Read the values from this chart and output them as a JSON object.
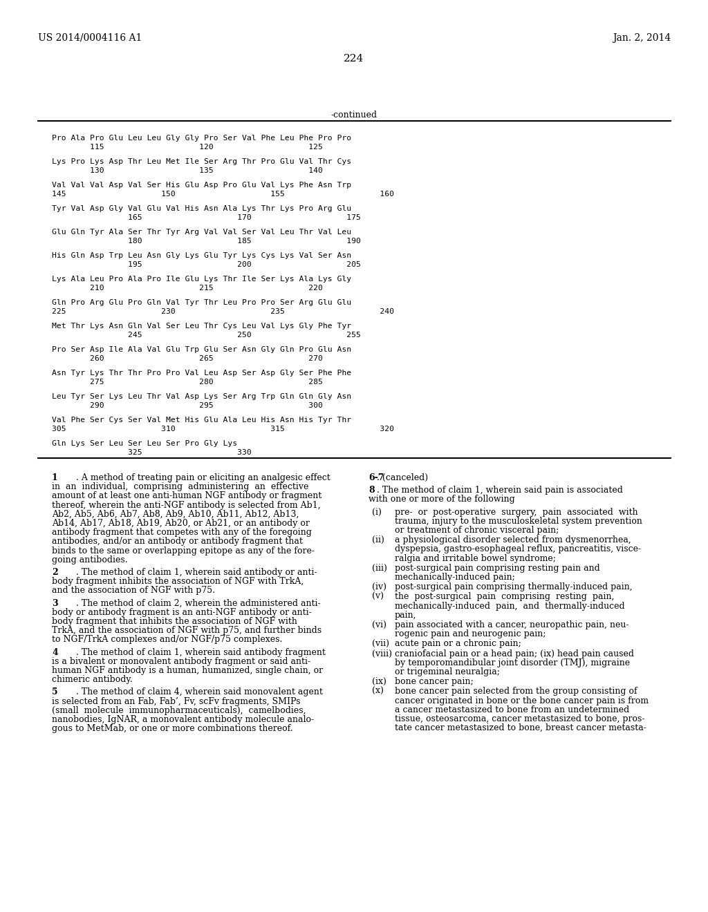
{
  "header_left": "US 2014/0004116 A1",
  "header_right": "Jan. 2, 2014",
  "page_number": "224",
  "continued_label": "-continued",
  "seq_data": [
    [
      "Pro Ala Pro Glu Leu Leu Gly Gly Pro Ser Val Phe Leu Phe Pro Pro",
      "        115                    120                    125"
    ],
    [
      "Lys Pro Lys Asp Thr Leu Met Ile Ser Arg Thr Pro Glu Val Thr Cys",
      "        130                    135                    140"
    ],
    [
      "Val Val Val Asp Val Ser His Glu Asp Pro Glu Val Lys Phe Asn Trp",
      "145                    150                    155                    160"
    ],
    [
      "Tyr Val Asp Gly Val Glu Val His Asn Ala Lys Thr Lys Pro Arg Glu",
      "                165                    170                    175"
    ],
    [
      "Glu Gln Tyr Ala Ser Thr Tyr Arg Val Val Ser Val Leu Thr Val Leu",
      "                180                    185                    190"
    ],
    [
      "His Gln Asp Trp Leu Asn Gly Lys Glu Tyr Lys Cys Lys Val Ser Asn",
      "                195                    200                    205"
    ],
    [
      "Lys Ala Leu Pro Ala Pro Ile Glu Lys Thr Ile Ser Lys Ala Lys Gly",
      "        210                    215                    220"
    ],
    [
      "Gln Pro Arg Glu Pro Gln Val Tyr Thr Leu Pro Pro Ser Arg Glu Glu",
      "225                    230                    235                    240"
    ],
    [
      "Met Thr Lys Asn Gln Val Ser Leu Thr Cys Leu Val Lys Gly Phe Tyr",
      "                245                    250                    255"
    ],
    [
      "Pro Ser Asp Ile Ala Val Glu Trp Glu Ser Asn Gly Gln Pro Glu Asn",
      "        260                    265                    270"
    ],
    [
      "Asn Tyr Lys Thr Thr Pro Pro Val Leu Asp Ser Asp Gly Ser Phe Phe",
      "        275                    280                    285"
    ],
    [
      "Leu Tyr Ser Lys Leu Thr Val Asp Lys Ser Arg Trp Gln Gln Gly Asn",
      "        290                    295                    300"
    ],
    [
      "Val Phe Ser Cys Ser Val Met His Glu Ala Leu His Asn His Tyr Thr",
      "305                    310                    315                    320"
    ],
    [
      "Gln Lys Ser Leu Ser Leu Ser Pro Gly Lys",
      "                325                    330"
    ]
  ],
  "left_claims": [
    {
      "num": "1",
      "lines": [
        ". A method of treating pain or eliciting an analgesic effect",
        "in  an  individual,  comprising  administering  an  effective",
        "amount of at least one anti-human NGF antibody or fragment",
        "thereof, wherein the anti-NGF antibody is selected from Ab1,",
        "Ab2, Ab5, Ab6, Ab7, Ab8, Ab9, Ab10, Ab11, Ab12, Ab13,",
        "Ab14, Ab17, Ab18, Ab19, Ab20, or Ab21, or an antibody or",
        "antibody fragment that competes with any of the foregoing",
        "antibodies, and/or an antibody or antibody fragment that",
        "binds to the same or overlapping epitope as any of the fore-",
        "going antibodies."
      ]
    },
    {
      "num": "2",
      "lines": [
        ". The method of claim 1, wherein said antibody or anti-",
        "body fragment inhibits the association of NGF with TrkA,",
        "and the association of NGF with p75."
      ]
    },
    {
      "num": "3",
      "lines": [
        ". The method of claim 2, wherein the administered anti-",
        "body or antibody fragment is an anti-NGF antibody or anti-",
        "body fragment that inhibits the association of NGF with",
        "TrkA, and the association of NGF with p75, and further binds",
        "to NGF/TrkA complexes and/or NGF/p75 complexes."
      ]
    },
    {
      "num": "4",
      "lines": [
        ". The method of claim 1, wherein said antibody fragment",
        "is a bivalent or monovalent antibody fragment or said anti-",
        "human NGF antibody is a human, humanized, single chain, or",
        "chimeric antibody."
      ]
    },
    {
      "num": "5",
      "lines": [
        ". The method of claim 4, wherein said monovalent agent",
        "is selected from an Fab, Fab’, Fv, scFv fragments, SMIPs",
        "(small  molecule  immunopharmaceuticals),  camelbodies,",
        "nanobodies, IgNAR, a monovalent antibody molecule analo-",
        "gous to MetMab, or one or more combinations thereof."
      ]
    }
  ],
  "right_claims_top": [
    {
      "num": "6-7",
      "lines": [
        ". (canceled)"
      ]
    },
    {
      "num": "8",
      "lines": [
        ". The method of claim 1, wherein said pain is associated",
        "with one or more of the following"
      ]
    }
  ],
  "right_items": [
    {
      "label": "(i)",
      "lines": [
        "pre-  or  post-operative  surgery,  pain  associated  with",
        "trauma, injury to the musculoskeletal system prevention",
        "or treatment of chronic visceral pain;"
      ]
    },
    {
      "label": "(ii)",
      "lines": [
        "a physiological disorder selected from dysmenorrhea,",
        "dyspepsia, gastro-esophageal reflux, pancreatitis, visce-",
        "ralgia and irritable bowel syndrome;"
      ]
    },
    {
      "label": "(iii)",
      "lines": [
        "post-surgical pain comprising resting pain and",
        "mechanically-induced pain;"
      ]
    },
    {
      "label": "(iv)",
      "lines": [
        "post-surgical pain comprising thermally-induced pain,"
      ]
    },
    {
      "label": "(v)",
      "lines": [
        "the  post-surgical  pain  comprising  resting  pain,",
        "mechanically-induced  pain,  and  thermally-induced",
        "pain,"
      ]
    },
    {
      "label": "(vi)",
      "lines": [
        "pain associated with a cancer, neuropathic pain, neu-",
        "rogenic pain and neurogenic pain;"
      ]
    },
    {
      "label": "(vii)",
      "lines": [
        "acute pain or a chronic pain;"
      ]
    },
    {
      "label": "(viii)",
      "lines": [
        "craniofacial pain or a head pain; (ix) head pain caused",
        "by temporomandibular joint disorder (TMJ), migraine",
        "or trigeminal neuralgia;"
      ]
    },
    {
      "label": "(ix)",
      "lines": [
        "bone cancer pain;"
      ]
    },
    {
      "label": "(x)",
      "lines": [
        "bone cancer pain selected from the group consisting of",
        "cancer originated in bone or the bone cancer pain is from",
        "a cancer metastasized to bone from an undetermined",
        "tissue, osteosarcoma, cancer metastasized to bone, pros-",
        "tate cancer metastasized to bone, breast cancer metasta-"
      ]
    }
  ],
  "bg": "#ffffff",
  "fg": "#000000"
}
